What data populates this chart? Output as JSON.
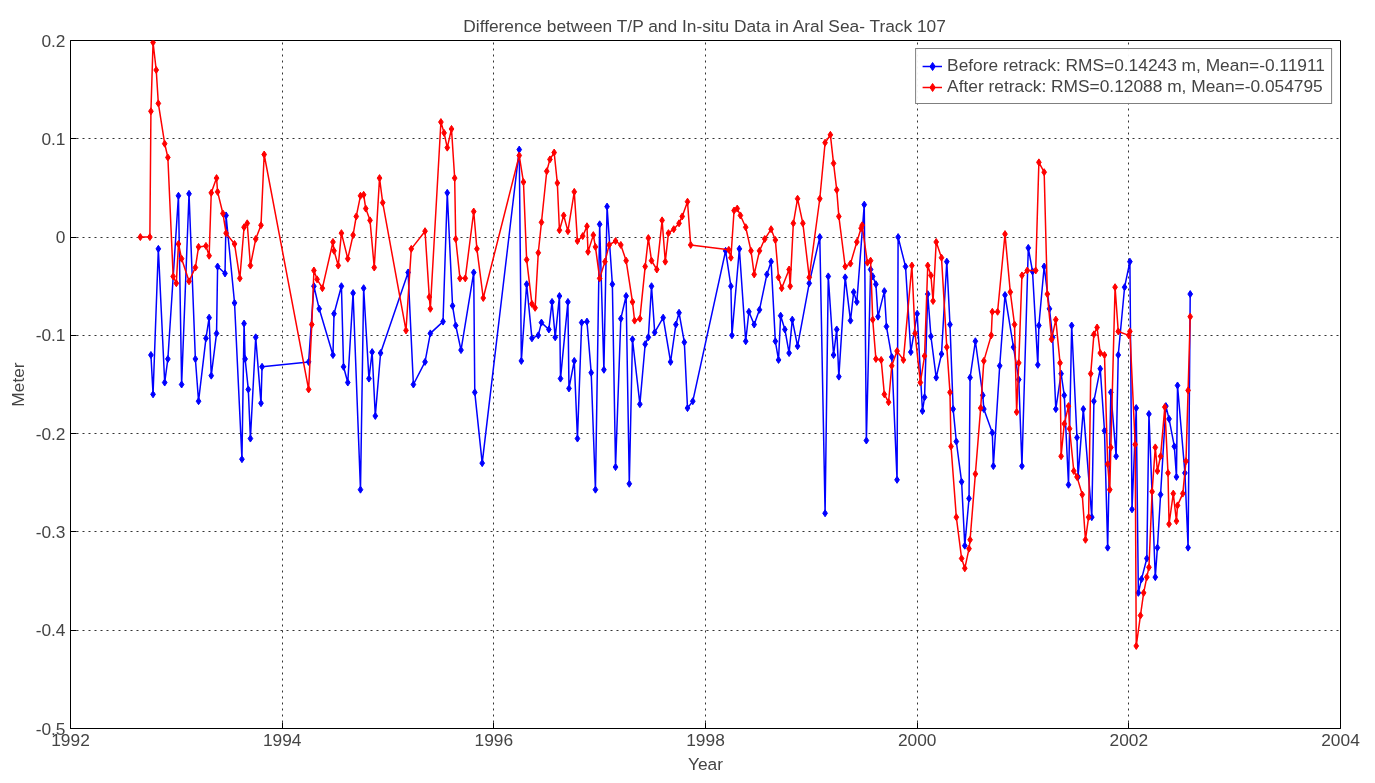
{
  "chart_data": {
    "type": "line",
    "title": "Difference between T/P and In-situ Data in Aral Sea- Track 107",
    "xlabel": "Year",
    "ylabel": "Meter",
    "xlim": [
      1992,
      2004
    ],
    "xticks": [
      1992,
      1994,
      1996,
      1998,
      2000,
      2002,
      2004
    ],
    "ylim": [
      -0.5,
      0.2
    ],
    "yticks": [
      -0.5,
      -0.4,
      -0.3,
      -0.2,
      -0.1,
      0,
      0.1,
      0.2
    ],
    "grid": true,
    "legend": "top right",
    "marker": "diamond",
    "line_style": "solid",
    "series": [
      {
        "name": "Before retrack: RMS=0.14243 m, Mean=-0.11911",
        "color": "#0000ff",
        "x": [
          1992.76,
          1992.78,
          1992.83,
          1992.89,
          1992.92,
          1993.02,
          1993.05,
          1993.12,
          1993.18,
          1993.21,
          1993.28,
          1993.31,
          1993.33,
          1993.38,
          1993.39,
          1993.46,
          1993.47,
          1993.55,
          1993.62,
          1993.64,
          1993.65,
          1993.68,
          1993.7,
          1993.75,
          1993.8,
          1993.81,
          1994.25,
          1994.3,
          1994.35,
          1994.48,
          1994.49,
          1994.56,
          1994.58,
          1994.62,
          1994.67,
          1994.74,
          1994.77,
          1994.82,
          1994.85,
          1994.88,
          1994.93,
          1995.19,
          1995.24,
          1995.35,
          1995.4,
          1995.52,
          1995.56,
          1995.61,
          1995.64,
          1995.69,
          1995.81,
          1995.82,
          1995.89,
          1996.24,
          1996.26,
          1996.31,
          1996.36,
          1996.42,
          1996.45,
          1996.52,
          1996.55,
          1996.58,
          1996.62,
          1996.63,
          1996.7,
          1996.71,
          1996.76,
          1996.79,
          1996.83,
          1996.88,
          1996.92,
          1996.96,
          1997.0,
          1997.04,
          1997.07,
          1997.12,
          1997.15,
          1997.2,
          1997.25,
          1997.28,
          1997.31,
          1997.38,
          1997.43,
          1997.46,
          1997.49,
          1997.52,
          1997.6,
          1997.67,
          1997.72,
          1997.75,
          1997.8,
          1997.83,
          1997.88,
          1998.19,
          1998.24,
          1998.25,
          1998.32,
          1998.38,
          1998.41,
          1998.46,
          1998.51,
          1998.58,
          1998.62,
          1998.66,
          1998.69,
          1998.71,
          1998.75,
          1998.79,
          1998.82,
          1998.87,
          1998.98,
          1999.08,
          1999.13,
          1999.16,
          1999.21,
          1999.24,
          1999.26,
          1999.32,
          1999.37,
          1999.4,
          1999.43,
          1999.5,
          1999.52,
          1999.56,
          1999.58,
          1999.61,
          1999.63,
          1999.69,
          1999.71,
          1999.76,
          1999.81,
          1999.82,
          1999.89,
          1999.94,
          2000.0,
          2000.05,
          2000.07,
          2000.1,
          2000.13,
          2000.18,
          2000.23,
          2000.28,
          2000.31,
          2000.34,
          2000.37,
          2000.42,
          2000.45,
          2000.49,
          2000.5,
          2000.55,
          2000.62,
          2000.63,
          2000.71,
          2000.72,
          2000.78,
          2000.83,
          2000.91,
          2000.96,
          2000.99,
          2001.05,
          2001.09,
          2001.14,
          2001.15,
          2001.2,
          2001.25,
          2001.28,
          2001.31,
          2001.36,
          2001.39,
          2001.43,
          2001.46,
          2001.51,
          2001.52,
          2001.57,
          2001.65,
          2001.67,
          2001.73,
          2001.77,
          2001.8,
          2001.83,
          2001.88,
          2001.9,
          2001.96,
          2002.01,
          2002.03,
          2002.07,
          2002.09,
          2002.12,
          2002.17,
          2002.19,
          2002.25,
          2002.27,
          2002.3,
          2002.35,
          2002.38,
          2002.43,
          2002.45,
          2002.46,
          2002.53,
          2002.56,
          2002.58
        ],
        "values": [
          -0.12,
          -0.16,
          -0.012,
          -0.148,
          -0.124,
          0.042,
          -0.15,
          0.044,
          -0.124,
          -0.167,
          -0.103,
          -0.082,
          -0.141,
          -0.098,
          -0.03,
          -0.037,
          0.022,
          -0.067,
          -0.226,
          -0.088,
          -0.124,
          -0.155,
          -0.205,
          -0.102,
          -0.169,
          -0.132,
          -0.127,
          -0.05,
          -0.073,
          -0.12,
          -0.078,
          -0.05,
          -0.132,
          -0.148,
          -0.057,
          -0.257,
          -0.052,
          -0.144,
          -0.117,
          -0.182,
          -0.118,
          -0.036,
          -0.15,
          -0.127,
          -0.098,
          -0.086,
          0.045,
          -0.07,
          -0.09,
          -0.115,
          -0.036,
          -0.158,
          -0.23,
          0.089,
          -0.126,
          -0.048,
          -0.103,
          -0.1,
          -0.087,
          -0.094,
          -0.066,
          -0.102,
          -0.06,
          -0.144,
          -0.066,
          -0.154,
          -0.126,
          -0.205,
          -0.087,
          -0.086,
          -0.138,
          -0.257,
          0.013,
          -0.135,
          0.031,
          -0.048,
          -0.234,
          -0.083,
          -0.06,
          -0.251,
          -0.104,
          -0.17,
          -0.109,
          -0.102,
          -0.05,
          -0.097,
          -0.082,
          -0.127,
          -0.089,
          -0.077,
          -0.107,
          -0.174,
          -0.167,
          -0.014,
          -0.05,
          -0.1,
          -0.012,
          -0.106,
          -0.076,
          -0.089,
          -0.074,
          -0.038,
          -0.025,
          -0.106,
          -0.125,
          -0.08,
          -0.094,
          -0.118,
          -0.084,
          -0.111,
          -0.047,
          0.0,
          -0.281,
          -0.04,
          -0.12,
          -0.094,
          -0.142,
          -0.041,
          -0.085,
          -0.056,
          -0.066,
          0.033,
          -0.207,
          -0.033,
          -0.04,
          -0.048,
          -0.081,
          -0.055,
          -0.091,
          -0.122,
          -0.247,
          0.0,
          -0.03,
          -0.117,
          -0.078,
          -0.177,
          -0.163,
          -0.058,
          -0.101,
          -0.143,
          -0.119,
          -0.025,
          -0.089,
          -0.175,
          -0.208,
          -0.249,
          -0.314,
          -0.266,
          -0.143,
          -0.106,
          -0.161,
          -0.175,
          -0.199,
          -0.233,
          -0.131,
          -0.059,
          -0.112,
          -0.145,
          -0.233,
          -0.011,
          -0.035,
          -0.13,
          -0.09,
          -0.03,
          -0.073,
          -0.102,
          -0.175,
          -0.139,
          -0.161,
          -0.252,
          -0.09,
          -0.204,
          -0.244,
          -0.175,
          -0.285,
          -0.167,
          -0.134,
          -0.197,
          -0.316,
          -0.158,
          -0.223,
          -0.12,
          -0.051,
          -0.025,
          -0.277,
          -0.174,
          -0.362,
          -0.348,
          -0.327,
          -0.18,
          -0.346,
          -0.316,
          -0.262,
          -0.172,
          -0.185,
          -0.213,
          -0.244,
          -0.151,
          -0.24,
          -0.316,
          -0.058
        ]
      },
      {
        "name": "After retrack: RMS=0.12088 m, Mean=-0.054795",
        "color": "#ff0000",
        "x": [
          1992.66,
          1992.75,
          1992.76,
          1992.78,
          1992.81,
          1992.83,
          1992.89,
          1992.92,
          1992.97,
          1993.0,
          1993.02,
          1993.05,
          1993.12,
          1993.18,
          1993.21,
          1993.28,
          1993.31,
          1993.33,
          1993.38,
          1993.39,
          1993.44,
          1993.47,
          1993.55,
          1993.6,
          1993.64,
          1993.67,
          1993.7,
          1993.75,
          1993.8,
          1993.83,
          1994.25,
          1994.28,
          1994.3,
          1994.33,
          1994.38,
          1994.48,
          1994.49,
          1994.53,
          1994.56,
          1994.62,
          1994.67,
          1994.7,
          1994.74,
          1994.77,
          1994.79,
          1994.83,
          1994.87,
          1994.92,
          1994.95,
          1995.17,
          1995.22,
          1995.35,
          1995.39,
          1995.4,
          1995.5,
          1995.53,
          1995.56,
          1995.6,
          1995.63,
          1995.64,
          1995.68,
          1995.73,
          1995.81,
          1995.84,
          1995.9,
          1996.24,
          1996.28,
          1996.31,
          1996.36,
          1996.39,
          1996.42,
          1996.45,
          1996.5,
          1996.53,
          1996.57,
          1996.6,
          1996.62,
          1996.66,
          1996.7,
          1996.76,
          1996.79,
          1996.84,
          1996.88,
          1996.89,
          1996.94,
          1996.96,
          1997.0,
          1997.05,
          1997.09,
          1997.15,
          1997.2,
          1997.25,
          1997.31,
          1997.33,
          1997.38,
          1997.43,
          1997.46,
          1997.49,
          1997.54,
          1997.59,
          1997.62,
          1997.65,
          1997.7,
          1997.75,
          1997.78,
          1997.83,
          1997.86,
          1998.22,
          1998.24,
          1998.27,
          1998.3,
          1998.33,
          1998.38,
          1998.43,
          1998.46,
          1998.51,
          1998.56,
          1998.62,
          1998.66,
          1998.69,
          1998.72,
          1998.79,
          1998.8,
          1998.83,
          1998.87,
          1998.92,
          1998.98,
          1999.08,
          1999.13,
          1999.18,
          1999.21,
          1999.24,
          1999.26,
          1999.32,
          1999.37,
          1999.43,
          1999.47,
          1999.48,
          1999.53,
          1999.56,
          1999.58,
          1999.61,
          1999.66,
          1999.69,
          1999.73,
          1999.76,
          1999.81,
          1999.87,
          1999.95,
          1999.98,
          2000.03,
          2000.07,
          2000.1,
          2000.13,
          2000.15,
          2000.18,
          2000.23,
          2000.28,
          2000.31,
          2000.32,
          2000.37,
          2000.42,
          2000.45,
          2000.49,
          2000.5,
          2000.55,
          2000.6,
          2000.63,
          2000.7,
          2000.71,
          2000.76,
          2000.83,
          2000.88,
          2000.92,
          2000.94,
          2000.96,
          2000.99,
          2001.04,
          2001.12,
          2001.15,
          2001.2,
          2001.23,
          2001.27,
          2001.31,
          2001.35,
          2001.36,
          2001.39,
          2001.43,
          2001.44,
          2001.48,
          2001.51,
          2001.56,
          2001.59,
          2001.62,
          2001.64,
          2001.67,
          2001.7,
          2001.73,
          2001.77,
          2001.8,
          2001.82,
          2001.83,
          2001.87,
          2001.9,
          2002.0,
          2002.01,
          2002.06,
          2002.07,
          2002.11,
          2002.14,
          2002.17,
          2002.19,
          2002.22,
          2002.25,
          2002.27,
          2002.3,
          2002.34,
          2002.37,
          2002.38,
          2002.42,
          2002.45,
          2002.46,
          2002.51,
          2002.54,
          2002.56,
          2002.58
        ],
        "values": [
          0.0,
          0.0,
          0.128,
          0.198,
          0.17,
          0.136,
          0.095,
          0.081,
          -0.04,
          -0.047,
          -0.007,
          -0.022,
          -0.045,
          -0.031,
          -0.01,
          -0.009,
          -0.019,
          0.045,
          0.06,
          0.046,
          0.024,
          0.004,
          -0.007,
          -0.042,
          0.01,
          0.014,
          -0.029,
          -0.002,
          0.012,
          0.084,
          -0.155,
          -0.089,
          -0.034,
          -0.043,
          -0.052,
          -0.005,
          -0.014,
          -0.029,
          0.004,
          -0.022,
          0.002,
          0.021,
          0.042,
          0.043,
          0.029,
          0.017,
          -0.031,
          0.06,
          0.035,
          -0.095,
          -0.012,
          0.006,
          -0.061,
          -0.073,
          0.117,
          0.106,
          0.091,
          0.11,
          0.06,
          -0.002,
          -0.042,
          -0.042,
          0.026,
          -0.012,
          -0.062,
          0.083,
          0.056,
          -0.023,
          -0.068,
          -0.072,
          -0.016,
          0.015,
          0.067,
          0.079,
          0.086,
          0.055,
          0.007,
          0.022,
          0.006,
          0.046,
          -0.004,
          0.001,
          0.011,
          -0.015,
          0.002,
          -0.01,
          -0.042,
          -0.025,
          -0.008,
          -0.004,
          -0.008,
          -0.024,
          -0.066,
          -0.085,
          -0.083,
          -0.03,
          -0.001,
          -0.024,
          -0.033,
          0.017,
          -0.025,
          0.004,
          0.008,
          0.014,
          0.021,
          0.036,
          -0.008,
          -0.013,
          -0.021,
          0.027,
          0.029,
          0.022,
          0.01,
          -0.014,
          -0.038,
          -0.014,
          -0.002,
          0.008,
          -0.003,
          -0.041,
          -0.052,
          -0.033,
          -0.05,
          0.014,
          0.039,
          0.014,
          -0.041,
          0.039,
          0.096,
          0.104,
          0.075,
          0.048,
          0.021,
          -0.03,
          -0.027,
          -0.005,
          0.009,
          0.012,
          -0.026,
          -0.024,
          -0.084,
          -0.124,
          -0.125,
          -0.16,
          -0.168,
          -0.131,
          -0.116,
          -0.125,
          -0.029,
          -0.098,
          -0.148,
          -0.121,
          -0.029,
          -0.039,
          -0.065,
          -0.005,
          -0.021,
          -0.112,
          -0.158,
          -0.213,
          -0.285,
          -0.327,
          -0.337,
          -0.317,
          -0.308,
          -0.241,
          -0.174,
          -0.126,
          -0.1,
          -0.076,
          -0.076,
          0.003,
          -0.056,
          -0.089,
          -0.178,
          -0.128,
          -0.039,
          -0.034,
          -0.034,
          0.076,
          0.066,
          -0.058,
          -0.104,
          -0.084,
          -0.128,
          -0.223,
          -0.19,
          -0.172,
          -0.195,
          -0.238,
          -0.244,
          -0.262,
          -0.308,
          -0.285,
          -0.139,
          -0.099,
          -0.092,
          -0.118,
          -0.12,
          -0.231,
          -0.257,
          -0.214,
          -0.051,
          -0.096,
          -0.1,
          -0.096,
          -0.211,
          -0.416,
          -0.385,
          -0.362,
          -0.346,
          -0.336,
          -0.259,
          -0.214,
          -0.238,
          -0.223,
          -0.173,
          -0.24,
          -0.292,
          -0.261,
          -0.289,
          -0.273,
          -0.261,
          -0.228,
          -0.156,
          -0.081
        ]
      }
    ]
  }
}
